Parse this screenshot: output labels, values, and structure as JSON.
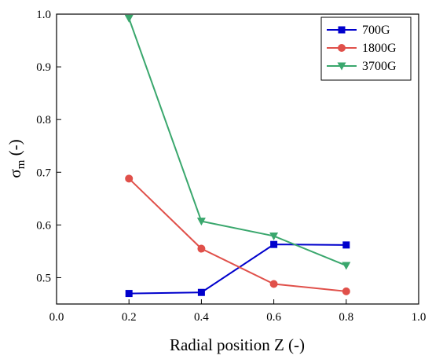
{
  "chart_data": {
    "type": "line",
    "xlabel": "Radial position Z (-)",
    "ylabel_main": "σ",
    "ylabel_sub": "m",
    "ylabel_suffix": " (-)",
    "xlim": [
      0.0,
      1.0
    ],
    "ylim": [
      0.45,
      1.0
    ],
    "xticks": [
      "0.0",
      "0.2",
      "0.4",
      "0.6",
      "0.8",
      "1.0"
    ],
    "yticks": [
      "0.5",
      "0.6",
      "0.7",
      "0.8",
      "0.9",
      "1.0"
    ],
    "grid": false,
    "legend_position": "top-right",
    "series": [
      {
        "name": "700G",
        "color": "#0000cc",
        "marker": "square",
        "x": [
          0.2,
          0.4,
          0.6,
          0.8
        ],
        "y": [
          0.47,
          0.472,
          0.563,
          0.562
        ]
      },
      {
        "name": "1800G",
        "color": "#e0504a",
        "marker": "circle",
        "x": [
          0.2,
          0.4,
          0.6,
          0.8
        ],
        "y": [
          0.688,
          0.555,
          0.488,
          0.474
        ]
      },
      {
        "name": "3700G",
        "color": "#3aa76d",
        "marker": "triangle-down",
        "x": [
          0.2,
          0.4,
          0.6,
          0.8
        ],
        "y": [
          0.992,
          0.607,
          0.579,
          0.523
        ]
      }
    ]
  }
}
